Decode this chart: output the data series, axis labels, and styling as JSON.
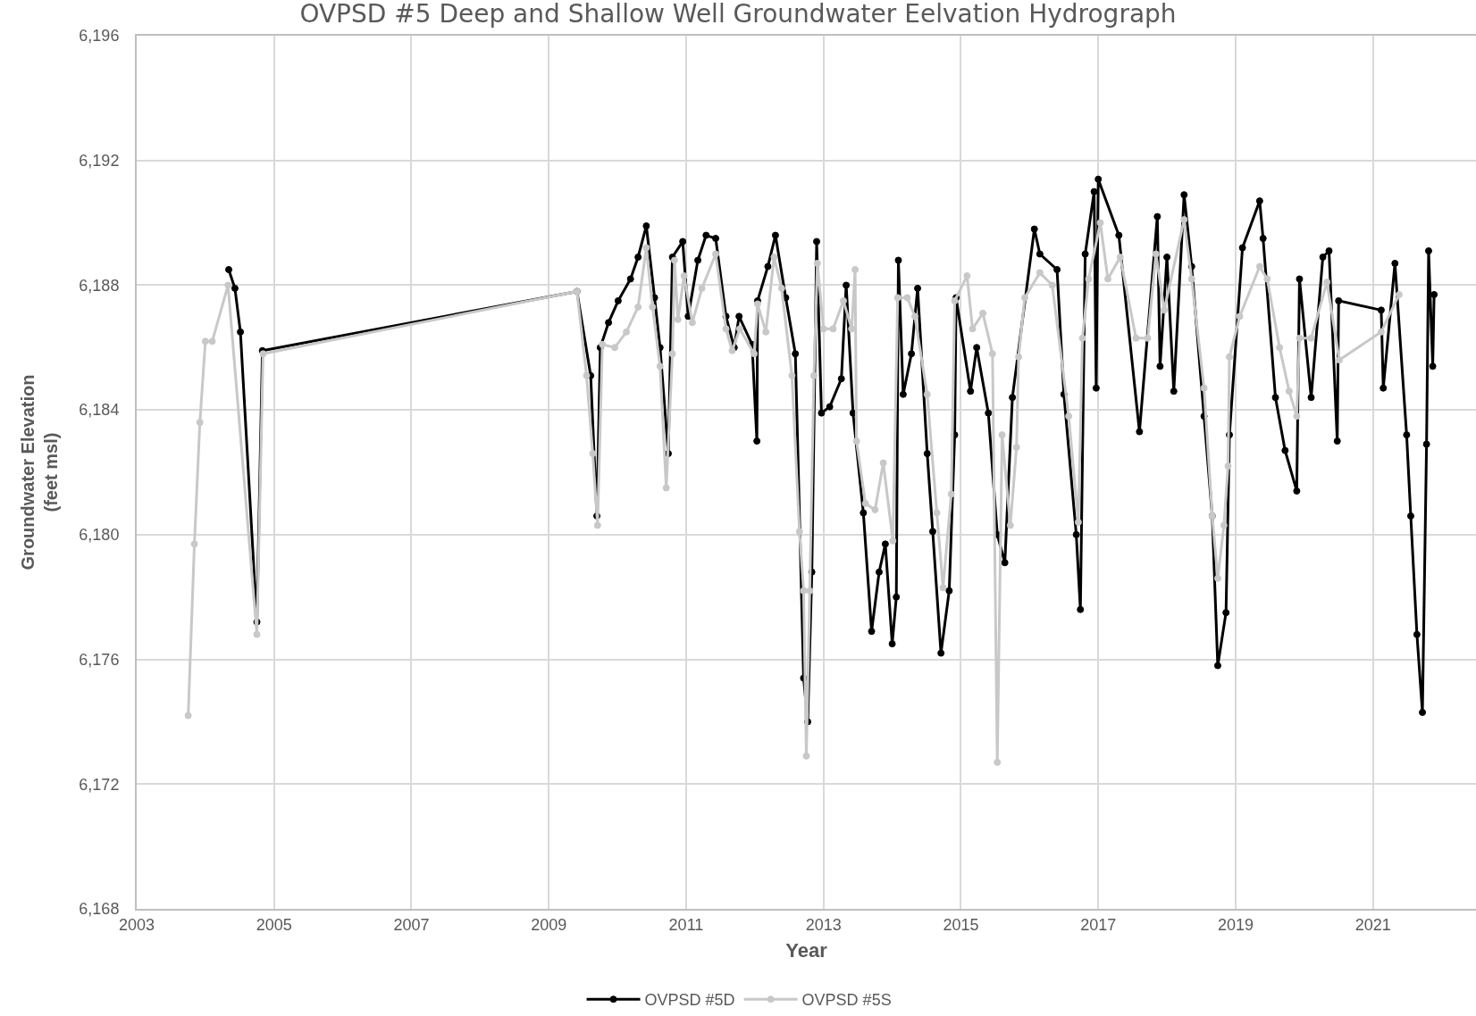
{
  "chart_data": {
    "type": "line",
    "title": "OVPSD #5 Deep and Shallow Well Groundwater Eelvation Hydrograph",
    "xlabel": "Year",
    "ylabel": "Groundwater Elevation\n(feet msl)",
    "xlim": [
      2003,
      2022.5
    ],
    "xticks": [
      2003,
      2005,
      2007,
      2009,
      2011,
      2013,
      2015,
      2017,
      2019,
      2021
    ],
    "ylim": [
      6168,
      6196
    ],
    "yticks": [
      {
        "value": 6168,
        "label": "6,168"
      },
      {
        "value": 6172,
        "label": "6,172"
      },
      {
        "value": 6176,
        "label": "6,176"
      },
      {
        "value": 6180,
        "label": "6,180"
      },
      {
        "value": 6184,
        "label": "6,184"
      },
      {
        "value": 6188,
        "label": "6,188"
      },
      {
        "value": 6192,
        "label": "6,192"
      },
      {
        "value": 6196,
        "label": "6,196"
      }
    ],
    "grid": true,
    "legend": "bottom",
    "marker": "circle",
    "line_style": "solid",
    "series": [
      {
        "name": "OVPSD #5D",
        "color": "#000000",
        "x": [
          2004.34,
          2004.43,
          2004.51,
          2004.75,
          2004.83,
          2009.41,
          2009.61,
          2009.7,
          2009.75,
          2009.87,
          2010.01,
          2010.19,
          2010.3,
          2010.42,
          2010.54,
          2010.62,
          2010.74,
          2010.8,
          2010.95,
          2011.03,
          2011.17,
          2011.29,
          2011.43,
          2011.58,
          2011.7,
          2011.77,
          2011.96,
          2012.03,
          2012.04,
          2012.19,
          2012.3,
          2012.45,
          2012.59,
          2012.71,
          2012.77,
          2012.83,
          2012.9,
          2012.97,
          2013.09,
          2013.26,
          2013.33,
          2013.43,
          2013.58,
          2013.7,
          2013.81,
          2013.9,
          2014.0,
          2014.06,
          2014.09,
          2014.16,
          2014.28,
          2014.37,
          2014.51,
          2014.59,
          2014.71,
          2014.83,
          2014.91,
          2014.93,
          2015.14,
          2015.23,
          2015.4,
          2015.53,
          2015.64,
          2015.75,
          2016.07,
          2016.15,
          2016.4,
          2016.5,
          2016.68,
          2016.74,
          2016.81,
          2016.94,
          2016.97,
          2017.0,
          2017.3,
          2017.6,
          2017.86,
          2017.9,
          2018.0,
          2018.1,
          2018.25,
          2018.36,
          2018.54,
          2018.66,
          2018.74,
          2018.86,
          2018.91,
          2019.1,
          2019.35,
          2019.4,
          2019.58,
          2019.72,
          2019.89,
          2019.93,
          2020.1,
          2020.27,
          2020.36,
          2020.48,
          2020.5,
          2021.12,
          2021.15,
          2021.32,
          2021.49,
          2021.55,
          2021.64,
          2021.72,
          2021.78,
          2021.81,
          2021.87,
          2021.89
        ],
        "values": [
          6188.5,
          6187.9,
          6186.5,
          6177.2,
          6185.9,
          6187.8,
          6185.1,
          6180.6,
          6186,
          6186.8,
          6187.5,
          6188.2,
          6188.9,
          6189.9,
          6187.6,
          6186,
          6182.6,
          6188.9,
          6189.4,
          6187,
          6188.8,
          6189.6,
          6189.5,
          6187,
          6186,
          6187,
          6186.1,
          6183,
          6187.5,
          6188.6,
          6189.6,
          6187.6,
          6185.8,
          6175.4,
          6174,
          6178.8,
          6189.4,
          6183.9,
          6184.1,
          6185,
          6188,
          6183.9,
          6180.7,
          6176.9,
          6178.8,
          6179.7,
          6176.5,
          6178,
          6188.8,
          6184.5,
          6185.8,
          6187.9,
          6182.6,
          6180.1,
          6176.2,
          6178.2,
          6183.2,
          6187.6,
          6184.6,
          6186,
          6183.9,
          6180,
          6179.1,
          6184.4,
          6189.8,
          6189,
          6188.5,
          6184.5,
          6180,
          6177.6,
          6189,
          6191,
          6184.7,
          6191.4,
          6189.6,
          6183.3,
          6190.2,
          6185.4,
          6188.9,
          6184.6,
          6190.9,
          6188.6,
          6183.8,
          6180.6,
          6175.8,
          6177.5,
          6183.2,
          6189.2,
          6190.7,
          6189.5,
          6184.4,
          6182.7,
          6181.4,
          6188.2,
          6184.4,
          6188.9,
          6189.1,
          6183,
          6187.5,
          6187.2,
          6184.7,
          6188.7,
          6183.2,
          6180.6,
          6176.8,
          6174.3,
          6182.9,
          6189.1,
          6185.4,
          6187.7
        ]
      },
      {
        "name": "OVPSD #5S",
        "color": "#c8c8c8",
        "x": [
          2003.75,
          2003.84,
          2003.92,
          2004.0,
          2004.1,
          2004.33,
          2004.75,
          2004.84,
          2009.41,
          2009.55,
          2009.64,
          2009.71,
          2009.78,
          2009.96,
          2010.13,
          2010.3,
          2010.42,
          2010.51,
          2010.62,
          2010.71,
          2010.8,
          2010.83,
          2010.88,
          2010.97,
          2011.09,
          2011.23,
          2011.43,
          2011.58,
          2011.67,
          2011.78,
          2011.99,
          2012.04,
          2012.16,
          2012.28,
          2012.39,
          2012.54,
          2012.65,
          2012.71,
          2012.75,
          2012.8,
          2012.86,
          2012.91,
          2013.0,
          2013.14,
          2013.29,
          2013.41,
          2013.46,
          2013.48,
          2013.61,
          2013.75,
          2013.87,
          2014.01,
          2014.08,
          2014.22,
          2014.33,
          2014.51,
          2014.65,
          2014.74,
          2014.86,
          2014.91,
          2015.09,
          2015.17,
          2015.32,
          2015.46,
          2015.53,
          2015.6,
          2015.72,
          2015.81,
          2015.84,
          2015.93,
          2016.15,
          2016.33,
          2016.57,
          2016.71,
          2016.77,
          2016.86,
          2017.03,
          2017.14,
          2017.32,
          2017.55,
          2017.72,
          2017.84,
          2017.96,
          2018.25,
          2018.36,
          2018.54,
          2018.66,
          2018.74,
          2018.83,
          2018.89,
          2018.91,
          2019.06,
          2019.35,
          2019.46,
          2019.64,
          2019.78,
          2019.89,
          2019.93,
          2020.1,
          2020.33,
          2020.51,
          2021.12,
          2021.38
        ],
        "values": [
          6174.2,
          6179.7,
          6183.6,
          6186.2,
          6186.2,
          6188,
          6176.8,
          6185.8,
          6187.8,
          6185.1,
          6182.6,
          6180.3,
          6186.1,
          6186,
          6186.5,
          6187.3,
          6189.2,
          6187.3,
          6185.4,
          6181.5,
          6185.8,
          6188.8,
          6186.9,
          6188.3,
          6186.8,
          6187.9,
          6189,
          6186.6,
          6185.9,
          6186.6,
          6185.8,
          6187.4,
          6186.5,
          6188.9,
          6187.9,
          6185.1,
          6180.1,
          6178.2,
          6172.9,
          6178.2,
          6185.1,
          6188.7,
          6186.6,
          6186.6,
          6187.5,
          6186.6,
          6188.5,
          6183,
          6181,
          6180.8,
          6182.3,
          6179.8,
          6187.6,
          6187.6,
          6187,
          6184.5,
          6180.7,
          6178.3,
          6181.3,
          6187.5,
          6188.3,
          6186.6,
          6187.1,
          6185.8,
          6172.7,
          6183.2,
          6180.3,
          6182.8,
          6185.7,
          6187.6,
          6188.4,
          6188,
          6183.8,
          6180.4,
          6186.3,
          6188.2,
          6190,
          6188.2,
          6188.9,
          6186.3,
          6186.3,
          6189,
          6187.2,
          6190.1,
          6188.2,
          6184.7,
          6180.6,
          6178.6,
          6180.3,
          6182.2,
          6185.7,
          6187,
          6188.6,
          6188.2,
          6186,
          6184.6,
          6183.8,
          6186.3,
          6186.3,
          6188.1,
          6185.6,
          6186.5,
          6187.7
        ]
      }
    ]
  }
}
